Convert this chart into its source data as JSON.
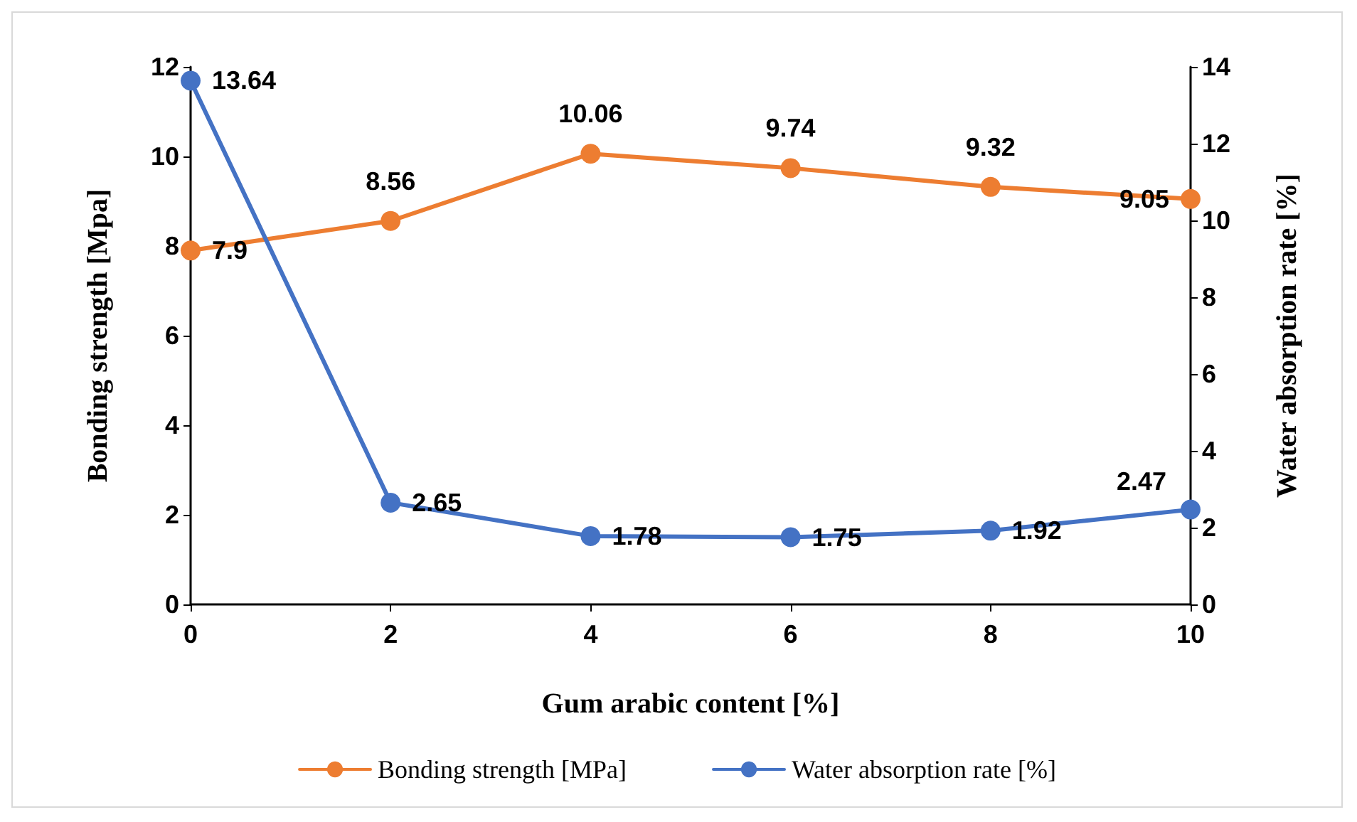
{
  "chart_data": {
    "type": "line",
    "xlabel": "Gum arabic content [%]",
    "ylabel": "Bonding strength [Mpa]",
    "y2label": "Water absorption rate [%]",
    "x": [
      0,
      2,
      4,
      6,
      8,
      10
    ],
    "series": [
      {
        "name": "Bonding strength [MPa]",
        "color": "#ed7d31",
        "values": [
          7.9,
          8.56,
          10.06,
          9.74,
          9.32,
          9.05
        ]
      },
      {
        "name": "Water absorption rate [%]",
        "color": "#4472c4",
        "axis": "y2",
        "values": [
          13.64,
          2.65,
          1.78,
          1.75,
          1.92,
          2.47
        ]
      }
    ],
    "xlim": [
      0,
      10
    ],
    "xticks": [
      0,
      2,
      4,
      6,
      8,
      10
    ],
    "ylim": [
      0,
      12
    ],
    "yticks": [
      0,
      2,
      4,
      6,
      8,
      10,
      12
    ],
    "y2lim": [
      0,
      14
    ],
    "y2ticks": [
      0,
      2,
      4,
      6,
      8,
      10,
      12,
      14
    ],
    "data_labels": true,
    "marker": "circle",
    "line_style": "solid",
    "grid": false,
    "legend": "bottom"
  }
}
